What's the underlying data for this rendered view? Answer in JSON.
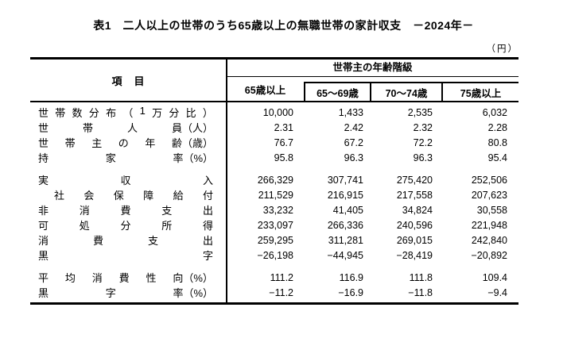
{
  "title": "表1　二人以上の世帯のうち65歳以上の無職世帯の家計収支　－2024年－",
  "unit_note": "（円）",
  "colors": {
    "text": "#000000",
    "border": "#000000",
    "background": "#ffffff"
  },
  "table": {
    "item_header": "項　目",
    "group_header": "世帯主の年齢階級",
    "columns": [
      "65歳以上",
      "65～69歳",
      "70～74歳",
      "75歳以上"
    ],
    "row_groups": [
      {
        "rows": [
          {
            "label": "世帯数分布（1万分比）",
            "tokens": [
              "世",
              "帯",
              "数",
              "分",
              "布",
              "（",
              "1",
              "万",
              "分",
              "比",
              "）"
            ],
            "indent": false,
            "values": [
              "10,000",
              "1,433",
              "2,535",
              "6,032"
            ]
          },
          {
            "label": "世帯人員（人）",
            "tokens": [
              "世",
              "帯",
              "人",
              "員（人）"
            ],
            "indent": false,
            "values": [
              "2.31",
              "2.42",
              "2.32",
              "2.28"
            ]
          },
          {
            "label": "世帯主の年齢（歳）",
            "tokens": [
              "世",
              "帯",
              "主",
              "の",
              "年",
              "齢（歳）"
            ],
            "indent": false,
            "values": [
              "76.7",
              "67.2",
              "72.2",
              "80.8"
            ]
          },
          {
            "label": "持家率（%）",
            "tokens": [
              "持",
              "家",
              "率（%）"
            ],
            "indent": false,
            "values": [
              "95.8",
              "96.3",
              "96.3",
              "95.4"
            ]
          }
        ]
      },
      {
        "rows": [
          {
            "label": "実収入",
            "tokens": [
              "実",
              "収",
              "入"
            ],
            "indent": false,
            "values": [
              "266,329",
              "307,741",
              "275,420",
              "252,506"
            ]
          },
          {
            "label": "社会保障給付",
            "tokens": [
              "社",
              "会",
              "保",
              "障",
              "給",
              "付"
            ],
            "indent": true,
            "values": [
              "211,529",
              "216,915",
              "217,558",
              "207,623"
            ]
          },
          {
            "label": "非消費支出",
            "tokens": [
              "非",
              "消",
              "費",
              "支",
              "出"
            ],
            "indent": false,
            "values": [
              "33,232",
              "41,405",
              "34,824",
              "30,558"
            ]
          },
          {
            "label": "可処分所得",
            "tokens": [
              "可",
              "処",
              "分",
              "所",
              "得"
            ],
            "indent": false,
            "values": [
              "233,097",
              "266,336",
              "240,596",
              "221,948"
            ]
          },
          {
            "label": "消費支出",
            "tokens": [
              "消",
              "費",
              "支",
              "出"
            ],
            "indent": false,
            "values": [
              "259,295",
              "311,281",
              "269,015",
              "242,840"
            ]
          },
          {
            "label": "黒字",
            "tokens": [
              "黒",
              "字"
            ],
            "indent": false,
            "values": [
              "−26,198",
              "−44,945",
              "−28,419",
              "−20,892"
            ]
          }
        ]
      },
      {
        "rows": [
          {
            "label": "平均消費性向（%）",
            "tokens": [
              "平",
              "均",
              "消",
              "費",
              "性",
              "向（%）"
            ],
            "indent": false,
            "values": [
              "111.2",
              "116.9",
              "111.8",
              "109.4"
            ]
          },
          {
            "label": "黒字率（%）",
            "tokens": [
              "黒",
              "字",
              "率（%）"
            ],
            "indent": false,
            "values": [
              "−11.2",
              "−16.9",
              "−11.8",
              "−9.4"
            ]
          }
        ]
      }
    ]
  },
  "chart_data": {
    "type": "table",
    "title": "表1　二人以上の世帯のうち65歳以上の無職世帯の家計収支　－2024年－",
    "unit": "円",
    "column_group_label": "世帯主の年齢階級",
    "columns": [
      "65歳以上",
      "65～69歳",
      "70～74歳",
      "75歳以上"
    ],
    "rows": [
      {
        "item": "世帯数分布（1万分比）",
        "values": [
          10000,
          1433,
          2535,
          6032
        ]
      },
      {
        "item": "世帯人員（人）",
        "values": [
          2.31,
          2.42,
          2.32,
          2.28
        ]
      },
      {
        "item": "世帯主の年齢（歳）",
        "values": [
          76.7,
          67.2,
          72.2,
          80.8
        ]
      },
      {
        "item": "持家率（%）",
        "values": [
          95.8,
          96.3,
          96.3,
          95.4
        ]
      },
      {
        "item": "実収入",
        "values": [
          266329,
          307741,
          275420,
          252506
        ]
      },
      {
        "item": "社会保障給付",
        "values": [
          211529,
          216915,
          217558,
          207623
        ]
      },
      {
        "item": "非消費支出",
        "values": [
          33232,
          41405,
          34824,
          30558
        ]
      },
      {
        "item": "可処分所得",
        "values": [
          233097,
          266336,
          240596,
          221948
        ]
      },
      {
        "item": "消費支出",
        "values": [
          259295,
          311281,
          269015,
          242840
        ]
      },
      {
        "item": "黒字",
        "values": [
          -26198,
          -44945,
          -28419,
          -20892
        ]
      },
      {
        "item": "平均消費性向（%）",
        "values": [
          111.2,
          116.9,
          111.8,
          109.4
        ]
      },
      {
        "item": "黒字率（%）",
        "values": [
          -11.2,
          -16.9,
          -11.8,
          -9.4
        ]
      }
    ]
  }
}
